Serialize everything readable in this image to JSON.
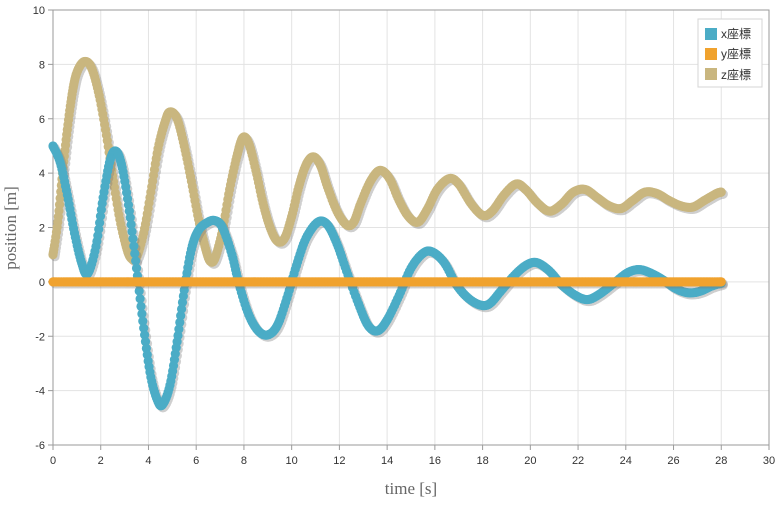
{
  "chart_data": {
    "type": "scatter",
    "xlabel": "time [s]",
    "ylabel": "position [m]",
    "xlim": [
      0,
      30
    ],
    "ylim": [
      -6,
      10
    ],
    "xticks": [
      "0",
      "2",
      "4",
      "6",
      "8",
      "10",
      "12",
      "14",
      "16",
      "18",
      "20",
      "22",
      "24",
      "26",
      "28",
      "30"
    ],
    "yticks": [
      "-6",
      "-4",
      "-2",
      "0",
      "2",
      "4",
      "6",
      "8",
      "10"
    ],
    "grid": true,
    "legend_position": "top-right",
    "series": [
      {
        "name": "x座標",
        "color": "#4bacc6",
        "points": [
          [
            0,
            5
          ],
          [
            0.3,
            4.4
          ],
          [
            0.6,
            3.2
          ],
          [
            0.9,
            1.8
          ],
          [
            1.2,
            0.7
          ],
          [
            1.45,
            0.3
          ],
          [
            1.8,
            1.3
          ],
          [
            2.1,
            3.1
          ],
          [
            2.4,
            4.5
          ],
          [
            2.65,
            4.8
          ],
          [
            2.9,
            4.2
          ],
          [
            3.2,
            2.6
          ],
          [
            3.5,
            0.5
          ],
          [
            3.8,
            -1.7
          ],
          [
            4.1,
            -3.5
          ],
          [
            4.4,
            -4.4
          ],
          [
            4.6,
            -4.5
          ],
          [
            4.9,
            -3.8
          ],
          [
            5.2,
            -2.2
          ],
          [
            5.5,
            -0.3
          ],
          [
            5.8,
            1.2
          ],
          [
            6.1,
            1.9
          ],
          [
            6.5,
            2.2
          ],
          [
            6.8,
            2.25
          ],
          [
            7.1,
            2.0
          ],
          [
            7.5,
            1.0
          ],
          [
            7.8,
            -0.1
          ],
          [
            8.2,
            -1.2
          ],
          [
            8.6,
            -1.8
          ],
          [
            9.0,
            -1.95
          ],
          [
            9.4,
            -1.6
          ],
          [
            9.8,
            -0.6
          ],
          [
            10.2,
            0.6
          ],
          [
            10.6,
            1.6
          ],
          [
            11.1,
            2.2
          ],
          [
            11.5,
            2.1
          ],
          [
            11.9,
            1.4
          ],
          [
            12.3,
            0.4
          ],
          [
            12.8,
            -0.8
          ],
          [
            13.2,
            -1.6
          ],
          [
            13.6,
            -1.8
          ],
          [
            14.0,
            -1.4
          ],
          [
            14.5,
            -0.5
          ],
          [
            15.0,
            0.5
          ],
          [
            15.5,
            1.05
          ],
          [
            15.9,
            1.1
          ],
          [
            16.4,
            0.7
          ],
          [
            16.9,
            -0.1
          ],
          [
            17.4,
            -0.6
          ],
          [
            17.9,
            -0.85
          ],
          [
            18.3,
            -0.8
          ],
          [
            18.8,
            -0.3
          ],
          [
            19.4,
            0.3
          ],
          [
            19.9,
            0.65
          ],
          [
            20.3,
            0.7
          ],
          [
            20.8,
            0.4
          ],
          [
            21.3,
            -0.1
          ],
          [
            21.9,
            -0.5
          ],
          [
            22.4,
            -0.65
          ],
          [
            22.9,
            -0.45
          ],
          [
            23.5,
            -0.05
          ],
          [
            24.1,
            0.35
          ],
          [
            24.6,
            0.45
          ],
          [
            25.1,
            0.3
          ],
          [
            25.6,
            0.05
          ],
          [
            26.1,
            -0.25
          ],
          [
            26.6,
            -0.4
          ],
          [
            27.1,
            -0.35
          ],
          [
            27.6,
            -0.15
          ],
          [
            28,
            -0.05
          ]
        ]
      },
      {
        "name": "y座標",
        "color": "#f0a22e",
        "points": [
          [
            0,
            0
          ],
          [
            0.5,
            0
          ],
          [
            1,
            0
          ],
          [
            1.5,
            0
          ],
          [
            2,
            0
          ],
          [
            2.5,
            0
          ],
          [
            3,
            0
          ],
          [
            3.5,
            0
          ],
          [
            4,
            0
          ],
          [
            4.5,
            0
          ],
          [
            5,
            0
          ],
          [
            5.5,
            0
          ],
          [
            6,
            0
          ],
          [
            6.5,
            0
          ],
          [
            7,
            0
          ],
          [
            7.5,
            0
          ],
          [
            8,
            0
          ],
          [
            8.5,
            0
          ],
          [
            9,
            0
          ],
          [
            9.5,
            0
          ],
          [
            10,
            0
          ],
          [
            10.5,
            0
          ],
          [
            11,
            0
          ],
          [
            11.5,
            0
          ],
          [
            12,
            0
          ],
          [
            12.5,
            0
          ],
          [
            13,
            0
          ],
          [
            13.5,
            0
          ],
          [
            14,
            0
          ],
          [
            14.5,
            0
          ],
          [
            15,
            0
          ],
          [
            15.5,
            0
          ],
          [
            16,
            0
          ],
          [
            16.5,
            0
          ],
          [
            17,
            0
          ],
          [
            17.5,
            0
          ],
          [
            18,
            0
          ],
          [
            18.5,
            0
          ],
          [
            19,
            0
          ],
          [
            19.5,
            0
          ],
          [
            20,
            0
          ],
          [
            20.5,
            0
          ],
          [
            21,
            0
          ],
          [
            21.5,
            0
          ],
          [
            22,
            0
          ],
          [
            22.5,
            0
          ],
          [
            23,
            0
          ],
          [
            23.5,
            0
          ],
          [
            24,
            0
          ],
          [
            24.5,
            0
          ],
          [
            25,
            0
          ],
          [
            25.5,
            0
          ],
          [
            26,
            0
          ],
          [
            26.5,
            0
          ],
          [
            27,
            0
          ],
          [
            27.5,
            0
          ],
          [
            28,
            0
          ]
        ]
      },
      {
        "name": "z座標",
        "color": "#c9b67f",
        "points": [
          [
            0,
            1
          ],
          [
            0.2,
            2.2
          ],
          [
            0.4,
            4.0
          ],
          [
            0.6,
            5.6
          ],
          [
            0.8,
            6.9
          ],
          [
            1.0,
            7.7
          ],
          [
            1.3,
            8.1
          ],
          [
            1.6,
            7.9
          ],
          [
            1.9,
            7.0
          ],
          [
            2.2,
            5.6
          ],
          [
            2.5,
            3.9
          ],
          [
            2.8,
            2.3
          ],
          [
            3.1,
            1.2
          ],
          [
            3.3,
            0.85
          ],
          [
            3.5,
            0.9
          ],
          [
            3.8,
            1.8
          ],
          [
            4.1,
            3.3
          ],
          [
            4.4,
            4.9
          ],
          [
            4.7,
            5.9
          ],
          [
            4.9,
            6.25
          ],
          [
            5.2,
            6.0
          ],
          [
            5.5,
            5.0
          ],
          [
            5.8,
            3.7
          ],
          [
            6.1,
            2.3
          ],
          [
            6.4,
            1.2
          ],
          [
            6.6,
            0.75
          ],
          [
            6.8,
            0.9
          ],
          [
            7.1,
            1.9
          ],
          [
            7.4,
            3.4
          ],
          [
            7.7,
            4.6
          ],
          [
            7.95,
            5.3
          ],
          [
            8.2,
            5.1
          ],
          [
            8.5,
            4.1
          ],
          [
            8.8,
            2.9
          ],
          [
            9.1,
            2.0
          ],
          [
            9.4,
            1.5
          ],
          [
            9.7,
            1.6
          ],
          [
            10.0,
            2.4
          ],
          [
            10.3,
            3.5
          ],
          [
            10.6,
            4.3
          ],
          [
            10.9,
            4.6
          ],
          [
            11.2,
            4.3
          ],
          [
            11.5,
            3.5
          ],
          [
            11.9,
            2.6
          ],
          [
            12.3,
            2.1
          ],
          [
            12.6,
            2.2
          ],
          [
            12.9,
            2.9
          ],
          [
            13.3,
            3.7
          ],
          [
            13.7,
            4.1
          ],
          [
            14.1,
            3.8
          ],
          [
            14.5,
            3.0
          ],
          [
            14.9,
            2.4
          ],
          [
            15.3,
            2.2
          ],
          [
            15.7,
            2.7
          ],
          [
            16.1,
            3.4
          ],
          [
            16.6,
            3.8
          ],
          [
            17.0,
            3.6
          ],
          [
            17.5,
            2.9
          ],
          [
            18.0,
            2.45
          ],
          [
            18.4,
            2.6
          ],
          [
            18.9,
            3.2
          ],
          [
            19.4,
            3.6
          ],
          [
            19.8,
            3.4
          ],
          [
            20.3,
            2.9
          ],
          [
            20.8,
            2.6
          ],
          [
            21.3,
            2.85
          ],
          [
            21.8,
            3.3
          ],
          [
            22.3,
            3.4
          ],
          [
            22.8,
            3.1
          ],
          [
            23.3,
            2.8
          ],
          [
            23.8,
            2.7
          ],
          [
            24.3,
            3.0
          ],
          [
            24.8,
            3.3
          ],
          [
            25.3,
            3.25
          ],
          [
            25.8,
            3.0
          ],
          [
            26.3,
            2.8
          ],
          [
            26.8,
            2.75
          ],
          [
            27.3,
            3.0
          ],
          [
            27.8,
            3.25
          ],
          [
            28,
            3.3
          ]
        ]
      }
    ]
  }
}
